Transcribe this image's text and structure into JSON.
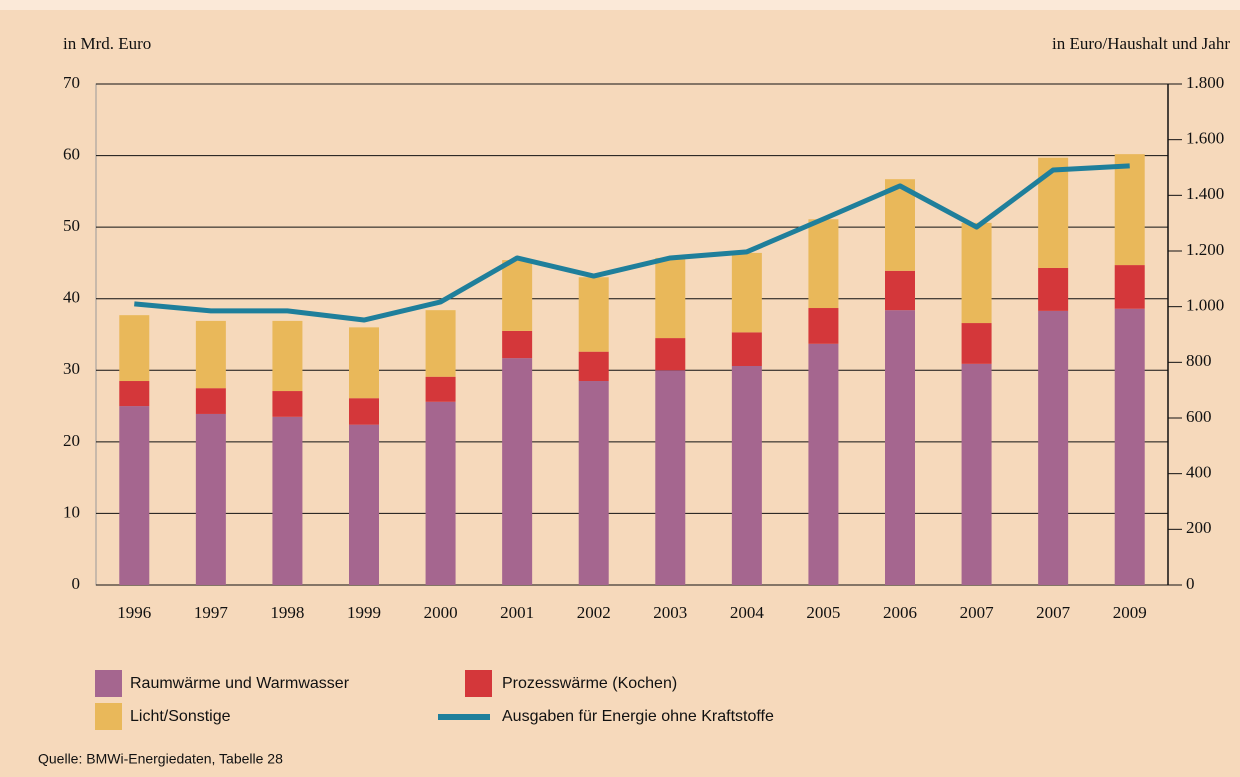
{
  "chart_data": {
    "type": "bar",
    "y_label": "in Mrd. Euro",
    "y2_label": "in Euro/Haushalt und Jahr",
    "source": "Quelle: BMWi-Energiedaten, Tabelle 28",
    "categories": [
      "1996",
      "1997",
      "1998",
      "1999",
      "2000",
      "2001",
      "2002",
      "2003",
      "2004",
      "2005",
      "2006",
      "2007",
      "2007",
      "2009"
    ],
    "series": [
      {
        "name": "Raumwärme und Warmwasser",
        "color": "#a5668f",
        "values": [
          25.0,
          23.9,
          23.5,
          22.4,
          25.6,
          31.7,
          28.5,
          30.0,
          30.6,
          33.7,
          38.4,
          30.9,
          38.3,
          38.6
        ]
      },
      {
        "name": "Prozesswärme (Kochen)",
        "color": "#d4373a",
        "values": [
          3.5,
          3.6,
          3.6,
          3.7,
          3.5,
          3.8,
          4.1,
          4.5,
          4.7,
          5.0,
          5.5,
          5.7,
          6.0,
          6.1
        ]
      },
      {
        "name": "Licht/Sonstige",
        "color": "#e9b85a",
        "values": [
          9.2,
          9.4,
          9.8,
          9.9,
          9.3,
          9.9,
          10.4,
          11.2,
          11.1,
          12.4,
          12.8,
          14.0,
          15.4,
          15.5
        ]
      },
      {
        "name": "Ausgaben für Energie ohne Kraftstoffe",
        "color": "#1f7f9b",
        "type": "line",
        "axis": "y2",
        "values": [
          1010,
          985,
          985,
          952,
          1017,
          1175,
          1110,
          1175,
          1197,
          1315,
          1434,
          1286,
          1491,
          1506
        ]
      }
    ],
    "ylim": [
      0,
      70
    ],
    "yticks": [
      0,
      10,
      20,
      30,
      40,
      50,
      60,
      70
    ],
    "y2lim": [
      0,
      1800
    ],
    "y2ticks": [
      0,
      200,
      400,
      600,
      800,
      {
        "value": 1000,
        "label": "1.000"
      },
      {
        "value": 1200,
        "label": "1.200"
      },
      {
        "value": 1400,
        "label": "1.400"
      },
      {
        "value": 1600,
        "label": "1.600"
      },
      {
        "value": 1800,
        "label": "1.800"
      }
    ],
    "stacked": true,
    "grid": true
  }
}
